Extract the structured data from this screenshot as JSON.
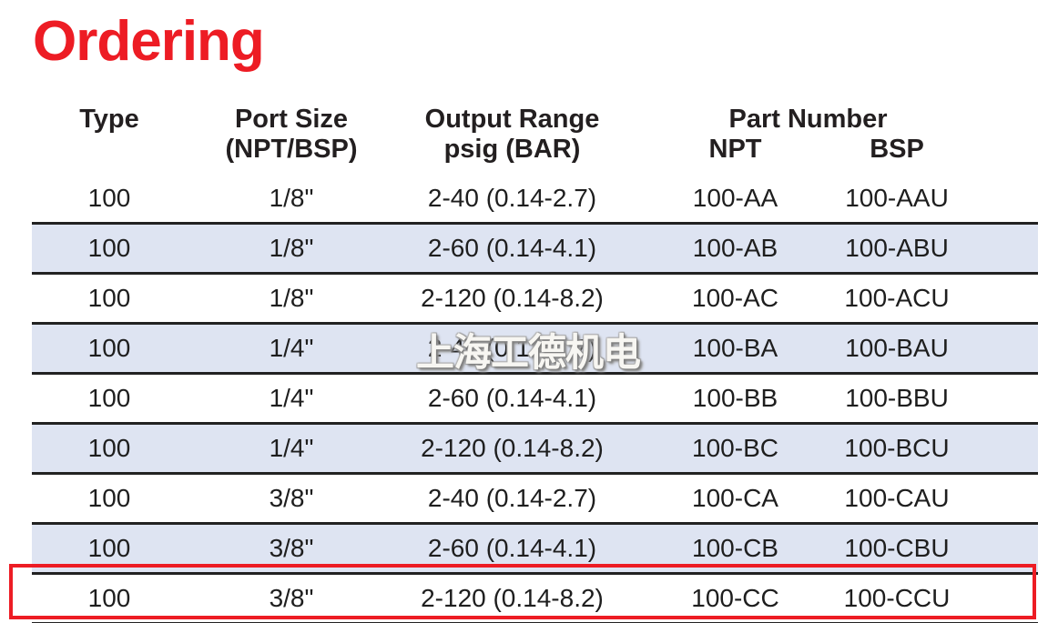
{
  "page": {
    "title": "Ordering"
  },
  "watermark": {
    "text": "上海工德机电"
  },
  "colors": {
    "title_red": "#ed1c24",
    "highlight_border_red": "#ed1c24",
    "row_shade_blue": "#dee4f2",
    "separator_line": "#222222"
  },
  "table": {
    "headers": {
      "type": "Type",
      "port_size_line1": "Port Size",
      "port_size_line2": "(NPT/BSP)",
      "output_range_line1": "Output Range",
      "output_range_line2": "psig (BAR)",
      "part_number": "Part Number",
      "npt": "NPT",
      "bsp": "BSP"
    },
    "rows": [
      {
        "type": "100",
        "port_size": "1/8\"",
        "output_range": "2-40 (0.14-2.7)",
        "npt": "100-AA",
        "bsp": "100-AAU",
        "shaded": false,
        "highlighted": false
      },
      {
        "type": "100",
        "port_size": "1/8\"",
        "output_range": "2-60 (0.14-4.1)",
        "npt": "100-AB",
        "bsp": "100-ABU",
        "shaded": true,
        "highlighted": false
      },
      {
        "type": "100",
        "port_size": "1/8\"",
        "output_range": "2-120 (0.14-8.2)",
        "npt": "100-AC",
        "bsp": "100-ACU",
        "shaded": false,
        "highlighted": false
      },
      {
        "type": "100",
        "port_size": "1/4\"",
        "output_range": "2-40 (0.14-2.7)",
        "npt": "100-BA",
        "bsp": "100-BAU",
        "shaded": true,
        "highlighted": false
      },
      {
        "type": "100",
        "port_size": "1/4\"",
        "output_range": "2-60 (0.14-4.1)",
        "npt": "100-BB",
        "bsp": "100-BBU",
        "shaded": false,
        "highlighted": false
      },
      {
        "type": "100",
        "port_size": "1/4\"",
        "output_range": "2-120 (0.14-8.2)",
        "npt": "100-BC",
        "bsp": "100-BCU",
        "shaded": true,
        "highlighted": false
      },
      {
        "type": "100",
        "port_size": "3/8\"",
        "output_range": "2-40 (0.14-2.7)",
        "npt": "100-CA",
        "bsp": "100-CAU",
        "shaded": false,
        "highlighted": false
      },
      {
        "type": "100",
        "port_size": "3/8\"",
        "output_range": "2-60 (0.14-4.1)",
        "npt": "100-CB",
        "bsp": "100-CBU",
        "shaded": true,
        "highlighted": false
      },
      {
        "type": "100",
        "port_size": "3/8\"",
        "output_range": "2-120 (0.14-8.2)",
        "npt": "100-CC",
        "bsp": "100-CCU",
        "shaded": false,
        "highlighted": true
      }
    ]
  }
}
